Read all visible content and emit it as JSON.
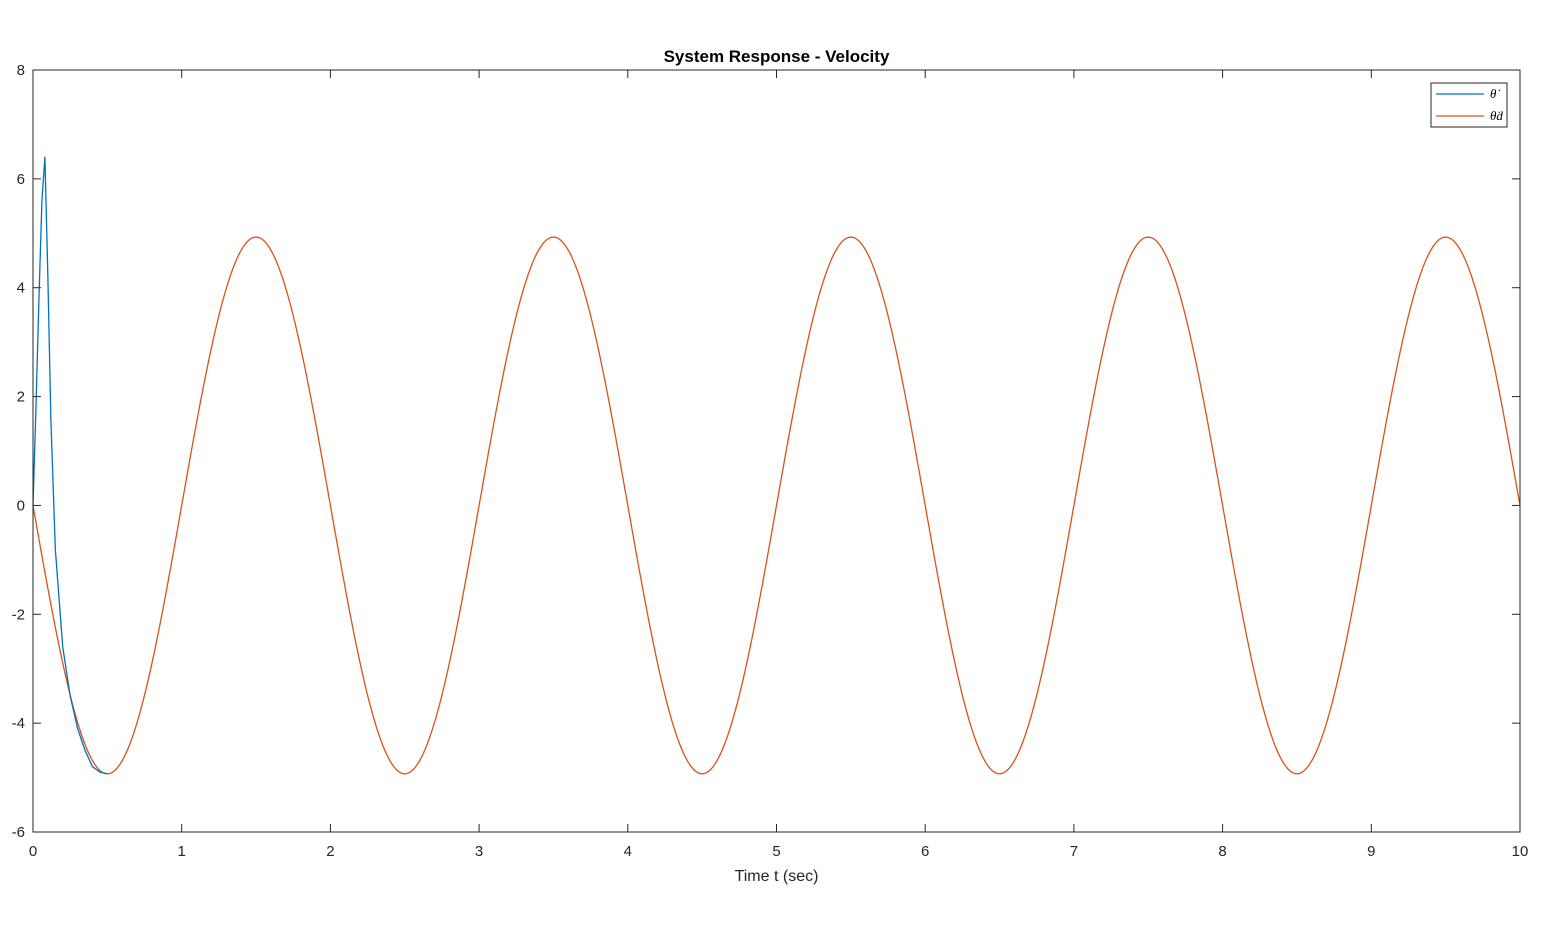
{
  "chart_data": {
    "type": "line",
    "title": "System Response - Velocity",
    "xlabel": "Time t (sec)",
    "ylabel": "",
    "xlim": [
      0,
      10
    ],
    "ylim": [
      -6,
      8
    ],
    "x_ticks": [
      "0",
      "1",
      "2",
      "3",
      "4",
      "5",
      "6",
      "7",
      "8",
      "9",
      "10"
    ],
    "y_ticks": [
      "-6",
      "-4",
      "-2",
      "0",
      "2",
      "4",
      "6",
      "8"
    ],
    "grid": false,
    "legend_position": "top-right",
    "series": [
      {
        "name": "θ̇",
        "color": "#0072BD",
        "x": [
          0,
          0.02,
          0.04,
          0.06,
          0.08,
          0.1,
          0.12,
          0.15,
          0.2,
          0.25,
          0.3,
          0.35,
          0.4,
          0.45,
          0.5
        ],
        "y": [
          0,
          1.8,
          3.8,
          5.6,
          6.4,
          4.2,
          1.6,
          -0.8,
          -2.6,
          -3.5,
          -4.1,
          -4.5,
          -4.8,
          -4.9,
          -4.93
        ]
      },
      {
        "name": "θ̇d",
        "color": "#D95319",
        "amplitude": 4.93,
        "period": 2,
        "x_start": 0,
        "x_end": 10,
        "note_shape": "-A·sin(2πt/period)"
      }
    ],
    "legend": [
      {
        "label": "θ̇",
        "color": "#0072BD"
      },
      {
        "label": "θ̇d",
        "color": "#D95319"
      }
    ]
  }
}
